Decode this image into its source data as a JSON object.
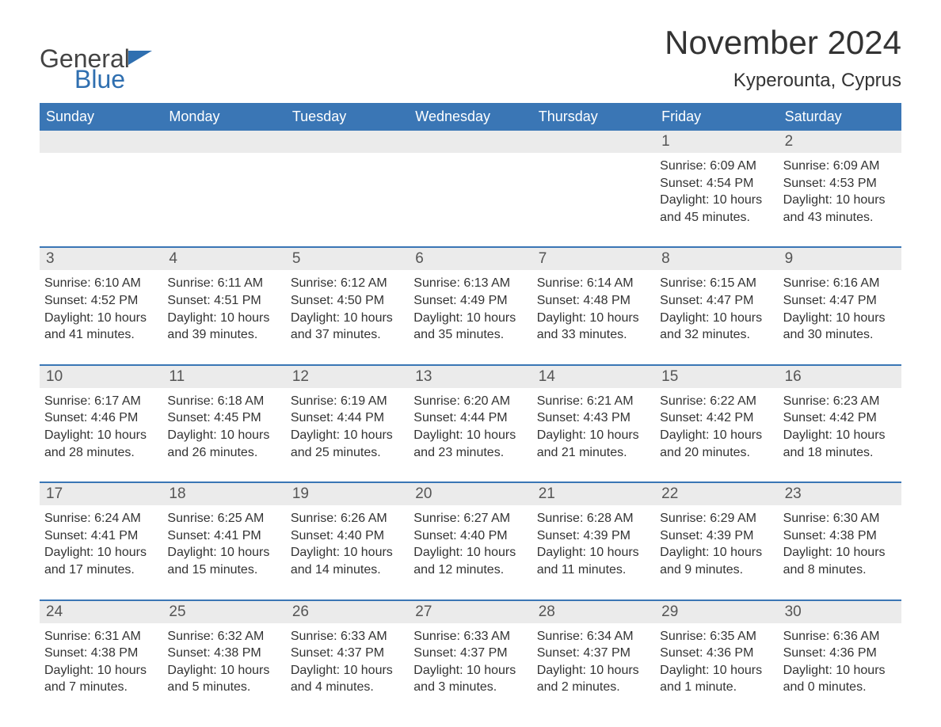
{
  "logo": {
    "text1": "General",
    "text2": "Blue"
  },
  "title": "November 2024",
  "subtitle": "Kyperounta, Cyprus",
  "colors": {
    "header_bg": "#3a76b5",
    "header_text": "#ffffff",
    "daynum_bg": "#ebebeb",
    "border": "#3a76b5",
    "body_text": "#333333",
    "logo_blue": "#2f6fb0",
    "page_bg": "#ffffff"
  },
  "day_names": [
    "Sunday",
    "Monday",
    "Tuesday",
    "Wednesday",
    "Thursday",
    "Friday",
    "Saturday"
  ],
  "labels": {
    "sunrise": "Sunrise:",
    "sunset": "Sunset:",
    "daylight": "Daylight:"
  },
  "weeks": [
    [
      null,
      null,
      null,
      null,
      null,
      {
        "d": "1",
        "sr": "6:09 AM",
        "ss": "4:54 PM",
        "dl": "10 hours and 45 minutes."
      },
      {
        "d": "2",
        "sr": "6:09 AM",
        "ss": "4:53 PM",
        "dl": "10 hours and 43 minutes."
      }
    ],
    [
      {
        "d": "3",
        "sr": "6:10 AM",
        "ss": "4:52 PM",
        "dl": "10 hours and 41 minutes."
      },
      {
        "d": "4",
        "sr": "6:11 AM",
        "ss": "4:51 PM",
        "dl": "10 hours and 39 minutes."
      },
      {
        "d": "5",
        "sr": "6:12 AM",
        "ss": "4:50 PM",
        "dl": "10 hours and 37 minutes."
      },
      {
        "d": "6",
        "sr": "6:13 AM",
        "ss": "4:49 PM",
        "dl": "10 hours and 35 minutes."
      },
      {
        "d": "7",
        "sr": "6:14 AM",
        "ss": "4:48 PM",
        "dl": "10 hours and 33 minutes."
      },
      {
        "d": "8",
        "sr": "6:15 AM",
        "ss": "4:47 PM",
        "dl": "10 hours and 32 minutes."
      },
      {
        "d": "9",
        "sr": "6:16 AM",
        "ss": "4:47 PM",
        "dl": "10 hours and 30 minutes."
      }
    ],
    [
      {
        "d": "10",
        "sr": "6:17 AM",
        "ss": "4:46 PM",
        "dl": "10 hours and 28 minutes."
      },
      {
        "d": "11",
        "sr": "6:18 AM",
        "ss": "4:45 PM",
        "dl": "10 hours and 26 minutes."
      },
      {
        "d": "12",
        "sr": "6:19 AM",
        "ss": "4:44 PM",
        "dl": "10 hours and 25 minutes."
      },
      {
        "d": "13",
        "sr": "6:20 AM",
        "ss": "4:44 PM",
        "dl": "10 hours and 23 minutes."
      },
      {
        "d": "14",
        "sr": "6:21 AM",
        "ss": "4:43 PM",
        "dl": "10 hours and 21 minutes."
      },
      {
        "d": "15",
        "sr": "6:22 AM",
        "ss": "4:42 PM",
        "dl": "10 hours and 20 minutes."
      },
      {
        "d": "16",
        "sr": "6:23 AM",
        "ss": "4:42 PM",
        "dl": "10 hours and 18 minutes."
      }
    ],
    [
      {
        "d": "17",
        "sr": "6:24 AM",
        "ss": "4:41 PM",
        "dl": "10 hours and 17 minutes."
      },
      {
        "d": "18",
        "sr": "6:25 AM",
        "ss": "4:41 PM",
        "dl": "10 hours and 15 minutes."
      },
      {
        "d": "19",
        "sr": "6:26 AM",
        "ss": "4:40 PM",
        "dl": "10 hours and 14 minutes."
      },
      {
        "d": "20",
        "sr": "6:27 AM",
        "ss": "4:40 PM",
        "dl": "10 hours and 12 minutes."
      },
      {
        "d": "21",
        "sr": "6:28 AM",
        "ss": "4:39 PM",
        "dl": "10 hours and 11 minutes."
      },
      {
        "d": "22",
        "sr": "6:29 AM",
        "ss": "4:39 PM",
        "dl": "10 hours and 9 minutes."
      },
      {
        "d": "23",
        "sr": "6:30 AM",
        "ss": "4:38 PM",
        "dl": "10 hours and 8 minutes."
      }
    ],
    [
      {
        "d": "24",
        "sr": "6:31 AM",
        "ss": "4:38 PM",
        "dl": "10 hours and 7 minutes."
      },
      {
        "d": "25",
        "sr": "6:32 AM",
        "ss": "4:38 PM",
        "dl": "10 hours and 5 minutes."
      },
      {
        "d": "26",
        "sr": "6:33 AM",
        "ss": "4:37 PM",
        "dl": "10 hours and 4 minutes."
      },
      {
        "d": "27",
        "sr": "6:33 AM",
        "ss": "4:37 PM",
        "dl": "10 hours and 3 minutes."
      },
      {
        "d": "28",
        "sr": "6:34 AM",
        "ss": "4:37 PM",
        "dl": "10 hours and 2 minutes."
      },
      {
        "d": "29",
        "sr": "6:35 AM",
        "ss": "4:36 PM",
        "dl": "10 hours and 1 minute."
      },
      {
        "d": "30",
        "sr": "6:36 AM",
        "ss": "4:36 PM",
        "dl": "10 hours and 0 minutes."
      }
    ]
  ]
}
